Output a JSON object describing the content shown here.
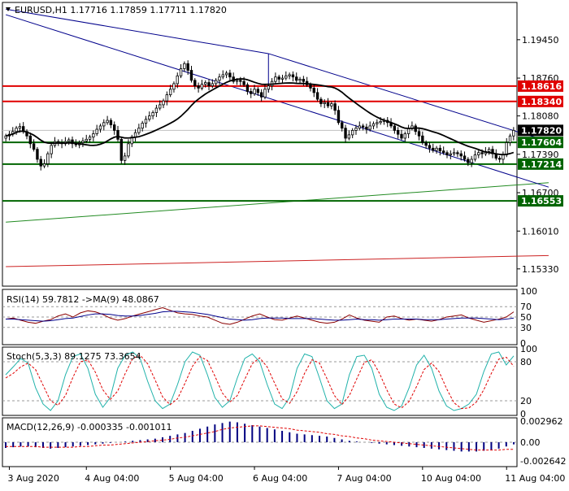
{
  "colors": {
    "background": "#ffffff",
    "bull_candle": "#ffffff",
    "bear_candle": "#000000",
    "wick": "#000000",
    "support": "#006400",
    "resistance": "#e00000",
    "channel": "#00008b",
    "long_trend_green": "#228b22",
    "long_trend_red": "#cc2222",
    "ma": "#000000",
    "rsi_line": "#8b0000",
    "rsi_ma": "#00008b",
    "stoch_main": "#20b2aa",
    "stoch_signal": "#e00000",
    "macd_hist": "#000080",
    "macd_signal": "#e00000",
    "price_badge": "#000000"
  },
  "chart_data": [
    {
      "type": "candlestick",
      "title": "EURUSD,H1  1.17716 1.17859 1.17711 1.17820",
      "symbol": "EURUSD",
      "timeframe": "H1",
      "ohlc_header": [
        "1.17716",
        "1.17859",
        "1.17711",
        "1.17820"
      ],
      "ylim": [
        1.1502,
        1.2012
      ],
      "y_ticks": [
        "1.19450",
        "1.18760",
        "1.18080",
        "1.17390",
        "1.16700",
        "1.16010",
        "1.15330"
      ],
      "y_tick_values": [
        1.1945,
        1.1876,
        1.1808,
        1.1739,
        1.167,
        1.1601,
        1.1533
      ],
      "x_ticks": [
        "3 Aug 2020",
        "4 Aug 04:00",
        "5 Aug 04:00",
        "6 Aug 04:00",
        "7 Aug 04:00",
        "10 Aug 04:00",
        "11 Aug 04:00"
      ],
      "x_tick_index": [
        1,
        23,
        47,
        71,
        95,
        119,
        143
      ],
      "current_price": "1.17820",
      "current_value": 1.1782,
      "resistance_levels": [
        {
          "label": "1.18616",
          "value": 1.18616
        },
        {
          "label": "1.18340",
          "value": 1.1834
        }
      ],
      "support_levels": [
        {
          "label": "1.17604",
          "value": 1.17604
        },
        {
          "label": "1.17214",
          "value": 1.17214
        },
        {
          "label": "1.16553",
          "value": 1.16553
        }
      ],
      "channel_upper": [
        [
          0,
          1.2
        ],
        [
          75,
          1.192
        ],
        [
          155,
          1.1762
        ]
      ],
      "channel_upper_start": [
        75,
        1.192
      ],
      "channel_lower": [
        [
          0,
          1.199
        ],
        [
          155,
          1.168
        ]
      ],
      "trend_green": [
        [
          0,
          1.1617
        ],
        [
          155,
          1.1688
        ]
      ],
      "trend_red": [
        [
          0,
          1.1537
        ],
        [
          155,
          1.1557
        ]
      ],
      "closes": [
        1.1772,
        1.1775,
        1.178,
        1.1786,
        1.1789,
        1.178,
        1.1772,
        1.1758,
        1.1748,
        1.173,
        1.1718,
        1.1722,
        1.174,
        1.1755,
        1.1762,
        1.176,
        1.1758,
        1.1762,
        1.1765,
        1.1758,
        1.1756,
        1.176,
        1.1763,
        1.1766,
        1.177,
        1.1776,
        1.1784,
        1.179,
        1.1796,
        1.18,
        1.1792,
        1.1782,
        1.1766,
        1.1728,
        1.1736,
        1.1758,
        1.177,
        1.1778,
        1.1786,
        1.1795,
        1.1802,
        1.1808,
        1.1814,
        1.1822,
        1.1828,
        1.1835,
        1.1846,
        1.1856,
        1.1866,
        1.188,
        1.1893,
        1.1902,
        1.189,
        1.1872,
        1.1862,
        1.1858,
        1.1865,
        1.1868,
        1.1862,
        1.1866,
        1.1872,
        1.1878,
        1.1882,
        1.1885,
        1.1878,
        1.187,
        1.1872,
        1.187,
        1.1864,
        1.1852,
        1.1848,
        1.1856,
        1.185,
        1.1842,
        1.1856,
        1.1862,
        1.187,
        1.1878,
        1.1874,
        1.1876,
        1.188,
        1.1882,
        1.1878,
        1.1872,
        1.1874,
        1.187,
        1.1864,
        1.1858,
        1.185,
        1.1838,
        1.183,
        1.1832,
        1.1826,
        1.183,
        1.1818,
        1.1796,
        1.1786,
        1.1768,
        1.1774,
        1.1782,
        1.1786,
        1.179,
        1.1788,
        1.1784,
        1.179,
        1.1794,
        1.1796,
        1.1798,
        1.18,
        1.1796,
        1.179,
        1.1782,
        1.1775,
        1.1768,
        1.1776,
        1.1786,
        1.179,
        1.178,
        1.1772,
        1.176,
        1.1755,
        1.175,
        1.1746,
        1.175,
        1.1745,
        1.1742,
        1.1738,
        1.174,
        1.1742,
        1.174,
        1.1736,
        1.173,
        1.1724,
        1.173,
        1.1738,
        1.1742,
        1.174,
        1.1744,
        1.1748,
        1.174,
        1.1732,
        1.173,
        1.1738,
        1.176,
        1.1772,
        1.1782
      ],
      "ma_period": 20
    },
    {
      "type": "line",
      "title": "RSI(14) 59.7812  ->MA(9) 48.0867",
      "ylim": [
        0,
        100
      ],
      "y_ticks": [
        "100",
        "70",
        "50",
        "30",
        "0"
      ],
      "y_tick_values": [
        100,
        70,
        50,
        30,
        0
      ],
      "levels": [
        70,
        50,
        30
      ],
      "series": [
        {
          "values": [
            46,
            48,
            44,
            40,
            38,
            42,
            45,
            52,
            56,
            50,
            58,
            62,
            60,
            55,
            48,
            44,
            47,
            52,
            56,
            60,
            64,
            68,
            63,
            58,
            56,
            55,
            52,
            50,
            44,
            38,
            36,
            40,
            46,
            52,
            56,
            50,
            45,
            44,
            48,
            52,
            48,
            44,
            40,
            38,
            40,
            46,
            54,
            48,
            44,
            42,
            40,
            50,
            52,
            47,
            44,
            46,
            44,
            42,
            45,
            50,
            52,
            54,
            48,
            44,
            40,
            43,
            46,
            50,
            60
          ]
        },
        {
          "values": [
            46,
            46,
            45,
            44,
            43,
            42,
            43,
            45,
            47,
            48,
            51,
            54,
            56,
            56,
            55,
            53,
            52,
            52,
            53,
            55,
            57,
            60,
            61,
            61,
            60,
            59,
            57,
            55,
            52,
            49,
            46,
            45,
            44,
            45,
            47,
            48,
            48,
            48,
            47,
            47,
            47,
            47,
            46,
            45,
            44,
            44,
            45,
            46,
            45,
            45,
            44,
            45,
            46,
            46,
            46,
            46,
            45,
            45,
            45,
            46,
            47,
            48,
            48,
            48,
            47,
            46,
            45,
            46,
            48
          ]
        }
      ]
    },
    {
      "type": "line",
      "title": "Stoch(5,3,3) 89.1275 73.3654",
      "ylim": [
        0,
        100
      ],
      "y_ticks": [
        "100",
        "80",
        "20",
        "0"
      ],
      "y_tick_values": [
        100,
        80,
        20,
        0
      ],
      "levels": [
        80,
        20
      ],
      "series": [
        {
          "values": [
            60,
            72,
            85,
            78,
            40,
            15,
            5,
            20,
            60,
            88,
            92,
            70,
            30,
            10,
            25,
            70,
            90,
            95,
            85,
            50,
            20,
            8,
            15,
            45,
            80,
            95,
            90,
            60,
            25,
            10,
            20,
            55,
            85,
            92,
            80,
            45,
            15,
            8,
            25,
            70,
            92,
            88,
            55,
            20,
            8,
            15,
            60,
            88,
            90,
            70,
            30,
            10,
            5,
            12,
            40,
            75,
            90,
            70,
            35,
            12,
            5,
            8,
            15,
            30,
            65,
            92,
            95,
            75,
            89
          ]
        },
        {
          "values": [
            55,
            62,
            72,
            78,
            68,
            44,
            20,
            13,
            28,
            56,
            80,
            83,
            64,
            37,
            22,
            35,
            62,
            85,
            90,
            77,
            52,
            26,
            14,
            23,
            47,
            73,
            88,
            82,
            58,
            32,
            18,
            28,
            53,
            77,
            86,
            72,
            47,
            23,
            16,
            34,
            62,
            83,
            78,
            54,
            28,
            14,
            28,
            54,
            79,
            83,
            63,
            37,
            15,
            9,
            19,
            42,
            68,
            78,
            65,
            39,
            17,
            8,
            9,
            18,
            37,
            62,
            84,
            87,
            73
          ]
        }
      ]
    },
    {
      "type": "bar",
      "title": "MACD(12,26,9) -0.000335 -0.001011",
      "ylim": [
        -0.0032,
        0.0032
      ],
      "y_ticks": [
        "0.002962",
        "0.00",
        "-0.002642"
      ],
      "y_tick_values": [
        0.002962,
        0,
        -0.002642
      ],
      "series": [
        {
          "values": [
            -0.0008,
            -0.0007,
            -0.0006,
            -0.0006,
            -0.0007,
            -0.0008,
            -0.0009,
            -0.0008,
            -0.0007,
            -0.0006,
            -0.0005,
            -0.0004,
            -0.0003,
            -0.0002,
            -0.0001,
            0,
            0.0001,
            0.0002,
            0.0003,
            0.0004,
            0.0005,
            0.0007,
            0.0009,
            0.0011,
            0.0013,
            0.0016,
            0.0019,
            0.0022,
            0.0025,
            0.0027,
            0.0029,
            0.0028,
            0.0026,
            0.0024,
            0.0022,
            0.002,
            0.0018,
            0.0016,
            0.0014,
            0.0012,
            0.0011,
            0.001,
            0.0009,
            0.0008,
            0.0006,
            0.0004,
            0.0002,
            0.0001,
            0,
            -0.0001,
            -0.0002,
            -0.0003,
            -0.0004,
            -0.0005,
            -0.0006,
            -0.0007,
            -0.0008,
            -0.0009,
            -0.001,
            -0.0011,
            -0.0012,
            -0.0013,
            -0.0013,
            -0.0013,
            -0.0012,
            -0.0011,
            -0.0009,
            -0.0006,
            -0.0003
          ]
        },
        {
          "values": [
            -0.0006,
            -0.0006,
            -0.0006,
            -0.0006,
            -0.0006,
            -0.0007,
            -0.0007,
            -0.0007,
            -0.0007,
            -0.0007,
            -0.0006,
            -0.0006,
            -0.0005,
            -0.0004,
            -0.0004,
            -0.0003,
            -0.0002,
            -0.0001,
            0,
            0.0001,
            0.0002,
            0.0003,
            0.0004,
            0.0006,
            0.0007,
            0.0009,
            0.0011,
            0.0013,
            0.0015,
            0.0018,
            0.002,
            0.0021,
            0.0022,
            0.0023,
            0.0023,
            0.0022,
            0.0021,
            0.002,
            0.0019,
            0.0017,
            0.0016,
            0.0015,
            0.0014,
            0.0012,
            0.0011,
            0.0009,
            0.0008,
            0.0006,
            0.0005,
            0.0003,
            0.0002,
            0.0001,
            0,
            -0.0001,
            -0.0002,
            -0.0003,
            -0.0004,
            -0.0005,
            -0.0006,
            -0.0007,
            -0.0008,
            -0.0009,
            -0.001,
            -0.0011,
            -0.0011,
            -0.0011,
            -0.0011,
            -0.001,
            -0.001
          ]
        }
      ]
    }
  ]
}
